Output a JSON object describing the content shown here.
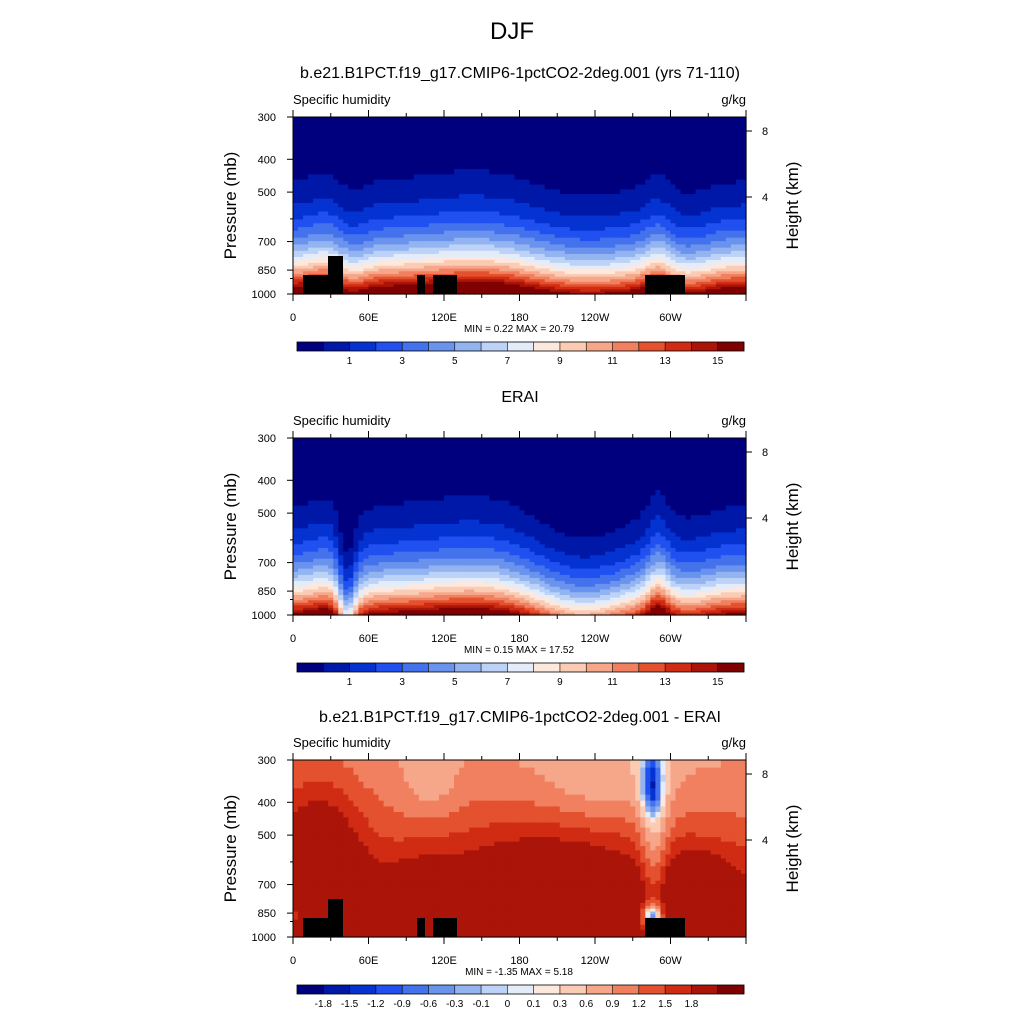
{
  "main_title": "DJF",
  "chart_data": [
    {
      "type": "heatmap",
      "title": "b.e21.B1PCT.f19_g17.CMIP6-1pctCO2-2deg.001 (yrs 71-110)",
      "left_label": "Specific humidity",
      "units": "g/kg",
      "ylabel": "Pressure (mb)",
      "right_label": "Height (km)",
      "x_ticks": [
        "0",
        "60E",
        "120E",
        "180",
        "120W",
        "60W"
      ],
      "y_ticks": [
        "300",
        "400",
        "500",
        "700",
        "850",
        "1000"
      ],
      "height_ticks": [
        "8",
        "4"
      ],
      "stats": "MIN =   0.22  MAX =  20.79",
      "min": 0.22,
      "max": 20.79,
      "colorbar_labels": [
        "1",
        "3",
        "5",
        "7",
        "9",
        "11",
        "13",
        "15"
      ],
      "orography": true,
      "colors": [
        "#00007f",
        "#0018a8",
        "#0533d1",
        "#2051f0",
        "#4472ec",
        "#6a93ee",
        "#93b4f1",
        "#bcd2f6",
        "#e4ecfa",
        "#fde8de",
        "#fbcbb3",
        "#f6a78a",
        "#f0805f",
        "#e4512e",
        "#d02b13",
        "#ab1408",
        "#7f0000"
      ]
    },
    {
      "type": "heatmap",
      "title": "ERAI",
      "left_label": "Specific humidity",
      "units": "g/kg",
      "ylabel": "Pressure (mb)",
      "right_label": "Height (km)",
      "x_ticks": [
        "0",
        "60E",
        "120E",
        "180",
        "120W",
        "60W"
      ],
      "y_ticks": [
        "300",
        "400",
        "500",
        "700",
        "850",
        "1000"
      ],
      "height_ticks": [
        "8",
        "4"
      ],
      "stats": "MIN =   0.15  MAX =  17.52",
      "min": 0.15,
      "max": 17.52,
      "colorbar_labels": [
        "1",
        "3",
        "5",
        "7",
        "9",
        "11",
        "13",
        "15"
      ],
      "orography": false,
      "colors": [
        "#00007f",
        "#0018a8",
        "#0533d1",
        "#2051f0",
        "#4472ec",
        "#6a93ee",
        "#93b4f1",
        "#bcd2f6",
        "#e4ecfa",
        "#fde8de",
        "#fbcbb3",
        "#f6a78a",
        "#f0805f",
        "#e4512e",
        "#d02b13",
        "#ab1408",
        "#7f0000"
      ]
    },
    {
      "type": "heatmap",
      "title": "b.e21.B1PCT.f19_g17.CMIP6-1pctCO2-2deg.001 - ERAI",
      "left_label": "Specific humidity",
      "units": "g/kg",
      "ylabel": "Pressure (mb)",
      "right_label": "Height (km)",
      "x_ticks": [
        "0",
        "60E",
        "120E",
        "180",
        "120W",
        "60W"
      ],
      "y_ticks": [
        "300",
        "400",
        "500",
        "700",
        "850",
        "1000"
      ],
      "height_ticks": [
        "8",
        "4"
      ],
      "stats": "MIN =  -1.35  MAX =   5.18",
      "min": -1.35,
      "max": 5.18,
      "colorbar_labels": [
        "-1.8",
        "-1.5",
        "-1.2",
        "-0.9",
        "-0.6",
        "-0.3",
        "-0.1",
        "0",
        "0.1",
        "0.3",
        "0.6",
        "0.9",
        "1.2",
        "1.5",
        "1.8"
      ],
      "orography": true,
      "colors": [
        "#00007f",
        "#0018a8",
        "#0533d1",
        "#2051f0",
        "#4472ec",
        "#6a93ee",
        "#93b4f1",
        "#bcd2f6",
        "#e4ecfa",
        "#fde8de",
        "#fbcbb3",
        "#f6a78a",
        "#f0805f",
        "#e4512e",
        "#d02b13",
        "#ab1408",
        "#7f0000"
      ]
    }
  ]
}
